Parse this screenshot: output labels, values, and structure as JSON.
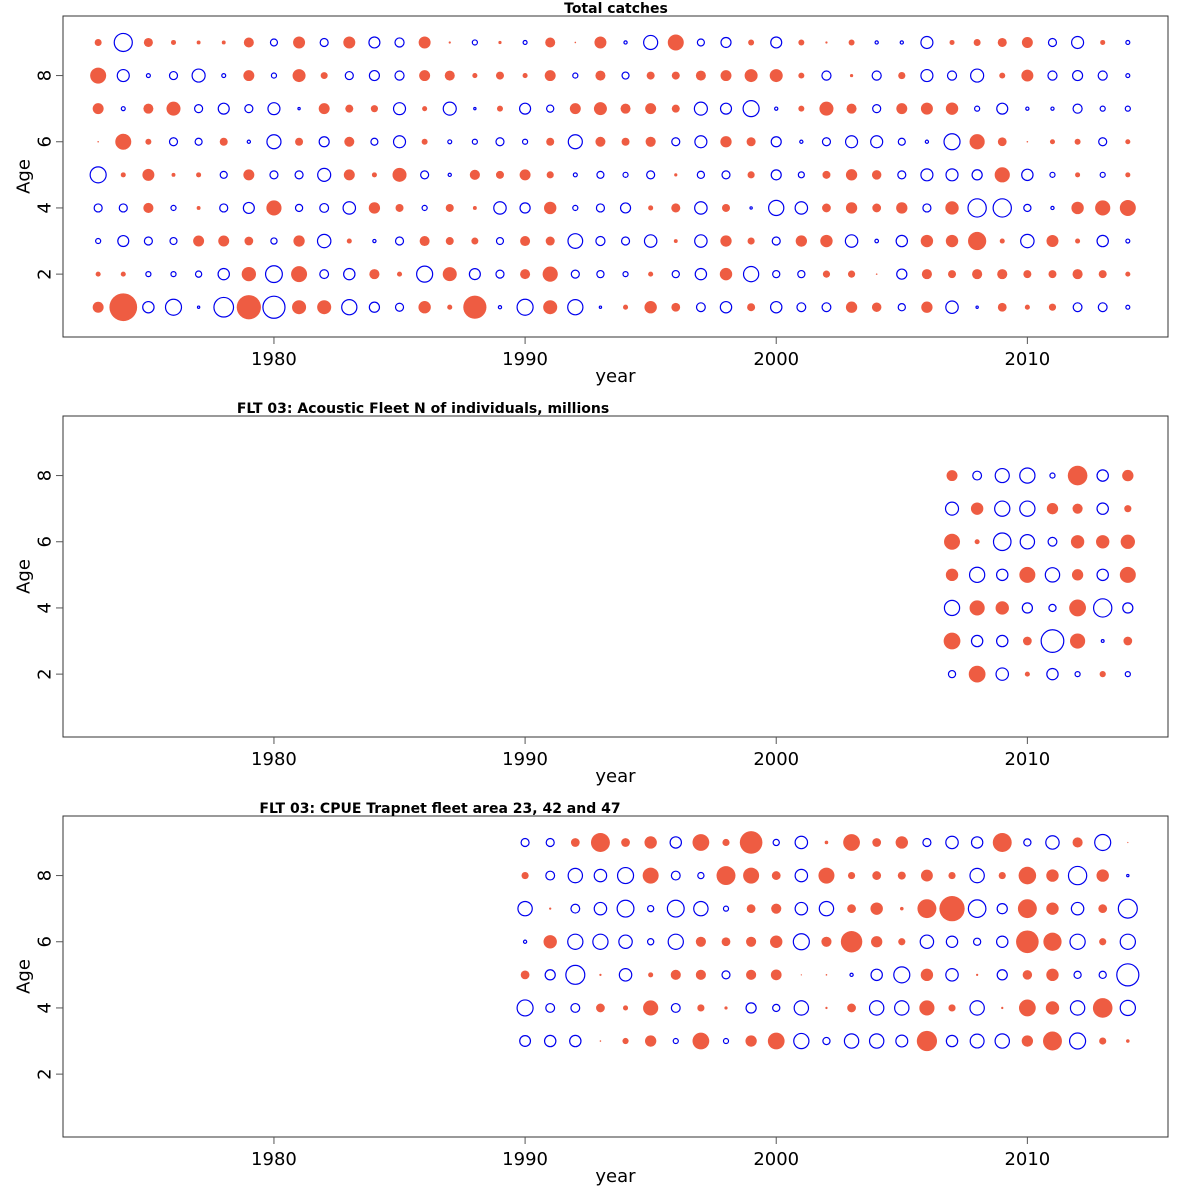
{
  "colors": {
    "positive": "#ee5c42",
    "negative": "#0000ee"
  },
  "chart_data": [
    {
      "type": "scatter",
      "subtype": "bubble",
      "title": "Total catches",
      "xlabel": "year",
      "ylabel": "Age",
      "xlim": [
        1971.6,
        2015.6
      ],
      "ylim": [
        0.1,
        9.8
      ],
      "xticks": [
        1980,
        1990,
        2000,
        2010
      ],
      "yticks": [
        2,
        4,
        6,
        8
      ],
      "encoding": "positive residual = filled red circle, negative residual = open blue circle, area proportional to |value|",
      "years": [
        1973,
        1974,
        1975,
        1976,
        1977,
        1978,
        1979,
        1980,
        1981,
        1982,
        1983,
        1984,
        1985,
        1986,
        1987,
        1988,
        1989,
        1990,
        1991,
        1992,
        1993,
        1994,
        1995,
        1996,
        1997,
        1998,
        1999,
        2000,
        2001,
        2002,
        2003,
        2004,
        2005,
        2006,
        2007,
        2008,
        2009,
        2010,
        2011,
        2012,
        2013,
        2014
      ],
      "ages": [
        1,
        2,
        3,
        4,
        5,
        6,
        7,
        8,
        9
      ],
      "values": {
        "9": [
          0.19,
          -1.27,
          0.32,
          0.1,
          0.06,
          0.06,
          0.39,
          -0.19,
          0.56,
          -0.25,
          0.56,
          -0.47,
          -0.32,
          0.56,
          0.02,
          -0.1,
          0.04,
          -0.06,
          0.39,
          0.01,
          0.56,
          -0.04,
          -0.77,
          1.0,
          -0.19,
          -0.39,
          0.14,
          -0.47,
          0.14,
          0.02,
          0.14,
          -0.04,
          -0.04,
          -0.56,
          0.1,
          0.19,
          0.32,
          0.47,
          -0.25,
          -0.56,
          0.1,
          -0.06
        ],
        "8": [
          1.0,
          -0.56,
          -0.06,
          -0.25,
          -0.66,
          -0.06,
          0.47,
          -0.1,
          0.66,
          0.19,
          -0.25,
          -0.39,
          -0.32,
          0.47,
          0.39,
          0.1,
          0.25,
          0.1,
          0.47,
          -0.1,
          0.39,
          -0.19,
          0.25,
          0.25,
          0.39,
          0.47,
          0.66,
          0.66,
          0.14,
          -0.32,
          0.04,
          -0.32,
          0.2,
          -0.56,
          -0.32,
          -0.66,
          0.14,
          0.56,
          -0.32,
          -0.39,
          -0.32,
          -0.06
        ],
        "7": [
          0.47,
          -0.06,
          0.39,
          0.77,
          -0.25,
          -0.47,
          -0.25,
          -0.56,
          -0.02,
          0.47,
          0.25,
          0.2,
          -0.56,
          0.1,
          -0.66,
          -0.02,
          0.14,
          -0.47,
          -0.2,
          0.47,
          0.66,
          0.39,
          0.47,
          0.25,
          -0.66,
          -0.47,
          -1.0,
          -0.04,
          0.14,
          0.77,
          0.39,
          -0.25,
          0.47,
          0.56,
          0.6,
          -0.1,
          -0.47,
          -0.04,
          -0.04,
          -0.32,
          -0.1,
          -0.1
        ],
        "6": [
          0.01,
          1.0,
          0.14,
          -0.25,
          -0.19,
          0.25,
          -0.04,
          -0.77,
          0.25,
          -0.39,
          0.39,
          -0.19,
          -0.56,
          0.14,
          -0.06,
          -0.1,
          -0.25,
          -0.1,
          0.25,
          -0.77,
          0.39,
          0.25,
          0.4,
          -0.25,
          -0.56,
          0.5,
          0.32,
          -0.39,
          -0.04,
          -0.25,
          -0.56,
          -0.56,
          -0.19,
          -0.04,
          -1.0,
          0.9,
          0.3,
          0.01,
          0.1,
          0.14,
          -0.25,
          0.1
        ],
        "5": [
          -1.0,
          0.1,
          0.56,
          0.06,
          0.1,
          -0.19,
          0.47,
          -0.25,
          -0.25,
          -0.66,
          0.47,
          0.1,
          0.77,
          -0.25,
          -0.04,
          0.4,
          0.25,
          0.47,
          0.2,
          -0.06,
          -0.19,
          -0.1,
          -0.25,
          0.04,
          -0.2,
          -0.25,
          0.2,
          -0.39,
          -0.14,
          0.25,
          0.5,
          0.35,
          -0.25,
          -0.56,
          -0.56,
          -0.4,
          0.9,
          -0.5,
          -0.1,
          0.1,
          -0.1,
          0.1
        ],
        "4": [
          -0.25,
          -0.25,
          0.4,
          -0.1,
          0.06,
          -0.25,
          -0.47,
          0.9,
          -0.2,
          -0.3,
          -0.6,
          0.5,
          0.25,
          -0.1,
          0.25,
          0.06,
          -0.6,
          -0.4,
          0.6,
          -0.1,
          -0.25,
          -0.39,
          0.1,
          0.32,
          -0.6,
          0.25,
          -0.02,
          -0.9,
          -0.6,
          0.3,
          0.5,
          0.3,
          0.5,
          -0.25,
          0.7,
          -1.3,
          -1.3,
          -0.2,
          -0.04,
          0.6,
          0.9,
          1.0
        ],
        "3": [
          -0.1,
          -0.47,
          -0.25,
          -0.19,
          0.47,
          0.47,
          0.3,
          -0.15,
          0.5,
          -0.7,
          0.1,
          -0.04,
          -0.25,
          0.39,
          0.25,
          0.19,
          -0.19,
          0.39,
          0.32,
          -0.84,
          -0.32,
          -0.25,
          -0.6,
          0.06,
          -0.6,
          0.5,
          0.2,
          -0.25,
          0.5,
          0.6,
          -0.6,
          -0.05,
          -0.5,
          0.6,
          0.6,
          1.3,
          0.1,
          -0.7,
          0.56,
          0.1,
          -0.5,
          -0.06
        ],
        "2": [
          0.1,
          0.1,
          -0.1,
          -0.1,
          -0.15,
          -0.5,
          0.8,
          -1.1,
          1.0,
          -0.3,
          -0.5,
          0.4,
          0.1,
          -1.0,
          0.77,
          -0.47,
          -0.25,
          0.39,
          0.9,
          -0.25,
          -0.2,
          -0.1,
          0.1,
          -0.2,
          -0.5,
          0.6,
          -0.9,
          -0.2,
          -0.2,
          0.2,
          0.2,
          0.01,
          -0.4,
          0.4,
          0.25,
          0.4,
          0.4,
          0.25,
          0.25,
          0.4,
          0.25,
          0.1
        ],
        "1": [
          0.47,
          3.0,
          -0.5,
          -1.0,
          -0.02,
          -1.5,
          2.3,
          -1.9,
          0.77,
          0.77,
          -0.9,
          -0.4,
          -0.25,
          0.6,
          0.1,
          2.1,
          -0.04,
          -1.0,
          0.77,
          -0.9,
          -0.02,
          0.1,
          0.6,
          0.3,
          -0.3,
          -0.5,
          0.25,
          -0.5,
          -0.3,
          -0.3,
          0.5,
          0.35,
          -0.2,
          0.5,
          -0.6,
          -0.02,
          0.3,
          0.1,
          0.2,
          -0.3,
          -0.3,
          -0.06
        ]
      }
    },
    {
      "type": "scatter",
      "subtype": "bubble",
      "title": "FLT 03: Acoustic Fleet   N of individuals, millions",
      "xlabel": "year",
      "ylabel": "Age",
      "xlim": [
        1971.6,
        2015.6
      ],
      "ylim": [
        0.1,
        9.8
      ],
      "xticks": [
        1980,
        1990,
        2000,
        2010
      ],
      "yticks": [
        2,
        4,
        6,
        8
      ],
      "encoding": "positive residual = filled red circle, negative residual = open blue circle, area proportional to |value|",
      "years": [
        2007,
        2008,
        2009,
        2010,
        2011,
        2012,
        2013,
        2014
      ],
      "ages": [
        2,
        3,
        4,
        5,
        6,
        7,
        8
      ],
      "values": {
        "8": [
          0.47,
          -0.3,
          -0.77,
          -0.9,
          -0.1,
          1.5,
          -0.5,
          0.5
        ],
        "7": [
          -0.66,
          0.6,
          -0.9,
          -0.9,
          0.5,
          0.4,
          -0.5,
          0.2
        ],
        "6": [
          1.0,
          0.1,
          -1.2,
          -0.8,
          -0.3,
          0.7,
          0.7,
          0.8
        ],
        "5": [
          0.6,
          -0.9,
          -0.5,
          1.0,
          -0.8,
          0.5,
          -0.5,
          1.0
        ],
        "4": [
          -0.9,
          0.9,
          0.7,
          -0.4,
          -0.2,
          1.1,
          -1.3,
          -0.4
        ],
        "3": [
          1.1,
          -0.5,
          -0.5,
          0.3,
          -2.0,
          0.9,
          -0.03,
          0.3
        ],
        "2": [
          -0.2,
          1.1,
          -0.6,
          0.1,
          -0.5,
          -0.1,
          0.15,
          -0.1
        ]
      }
    },
    {
      "type": "scatter",
      "subtype": "bubble",
      "title": "FLT 03: CPUE Trapnet fleet area 23, 42 and 47",
      "xlabel": "year",
      "ylabel": "Age",
      "xlim": [
        1971.6,
        2015.6
      ],
      "ylim": [
        0.1,
        9.8
      ],
      "xticks": [
        1980,
        1990,
        2000,
        2010
      ],
      "yticks": [
        2,
        4,
        6,
        8
      ],
      "encoding": "positive residual = filled red circle, negative residual = open blue circle, area proportional to |value|",
      "years": [
        1990,
        1991,
        1992,
        1993,
        1994,
        1995,
        1996,
        1997,
        1998,
        1999,
        2000,
        2001,
        2002,
        2003,
        2004,
        2005,
        2006,
        2007,
        2008,
        2009,
        2010,
        2011,
        2012,
        2013,
        2014
      ],
      "ages": [
        3,
        4,
        5,
        6,
        7,
        8,
        9
      ],
      "values": {
        "9": [
          -0.25,
          -0.25,
          0.3,
          1.4,
          0.3,
          0.6,
          -0.5,
          1.1,
          0.2,
          2.0,
          -0.15,
          -0.6,
          0.05,
          1.1,
          0.3,
          0.6,
          -0.25,
          -0.6,
          -0.5,
          1.4,
          -0.2,
          -0.7,
          0.4,
          -1.0,
          0.0
        ],
        "8": [
          0.2,
          -0.3,
          -0.8,
          -0.6,
          -1.0,
          1.0,
          -0.3,
          -0.15,
          1.4,
          1.0,
          0.3,
          -0.6,
          1.0,
          0.2,
          0.3,
          0.25,
          0.55,
          0.2,
          -0.8,
          0.2,
          1.2,
          0.6,
          -1.3,
          0.6,
          -0.02
        ],
        "7": [
          -0.8,
          0.02,
          -0.3,
          -0.6,
          -1.1,
          -0.15,
          -1.1,
          -0.8,
          -0.1,
          0.3,
          0.4,
          -0.6,
          -0.8,
          0.3,
          0.6,
          0.05,
          1.4,
          2.5,
          -1.2,
          -0.4,
          1.4,
          0.6,
          -0.6,
          0.3,
          -1.4
        ],
        "6": [
          -0.04,
          0.7,
          -0.9,
          -0.9,
          -0.7,
          -0.15,
          -0.9,
          0.4,
          0.3,
          0.4,
          0.6,
          -1.0,
          0.4,
          1.8,
          0.5,
          0.2,
          -0.7,
          -0.5,
          -0.2,
          -0.5,
          2.0,
          1.3,
          -0.9,
          0.2,
          -0.9
        ],
        "5": [
          0.3,
          -0.4,
          -1.4,
          0.02,
          -0.6,
          0.1,
          0.4,
          0.4,
          -0.25,
          0.4,
          0.45,
          0.0,
          0.01,
          -0.04,
          -0.5,
          -1.0,
          0.6,
          -0.6,
          0.02,
          -0.4,
          0.35,
          0.6,
          -0.2,
          -0.2,
          -1.9
        ],
        "4": [
          -1.0,
          -0.3,
          -0.3,
          0.3,
          0.1,
          0.9,
          -0.3,
          0.2,
          0.04,
          -0.4,
          -0.2,
          -0.8,
          0.02,
          0.3,
          -0.8,
          -0.8,
          0.9,
          0.2,
          -0.8,
          0.02,
          1.1,
          0.7,
          -0.8,
          1.5,
          -0.9
        ],
        "3": [
          -0.45,
          -0.5,
          -0.5,
          0.01,
          0.15,
          0.5,
          -0.1,
          1.1,
          -0.1,
          0.5,
          1.1,
          -0.9,
          -0.2,
          -0.8,
          -0.8,
          -0.55,
          1.6,
          -0.5,
          -0.75,
          -0.8,
          0.5,
          1.4,
          -1.0,
          0.2,
          0.05
        ]
      }
    }
  ]
}
